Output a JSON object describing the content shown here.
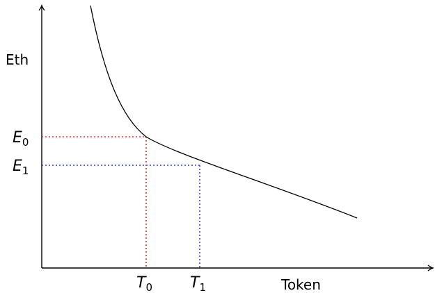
{
  "labels": {
    "y_axis": "Eth",
    "x_axis": "Token",
    "E0": {
      "base": "E",
      "sub": "0"
    },
    "E1": {
      "base": "E",
      "sub": "1"
    },
    "T0": {
      "base": "T",
      "sub": "0"
    },
    "T1": {
      "base": "T",
      "sub": "1"
    }
  },
  "colors": {
    "axis": "#000000",
    "curve": "#000000",
    "guide_0": "#e8302a",
    "guide_1": "#2c3ed6"
  }
}
